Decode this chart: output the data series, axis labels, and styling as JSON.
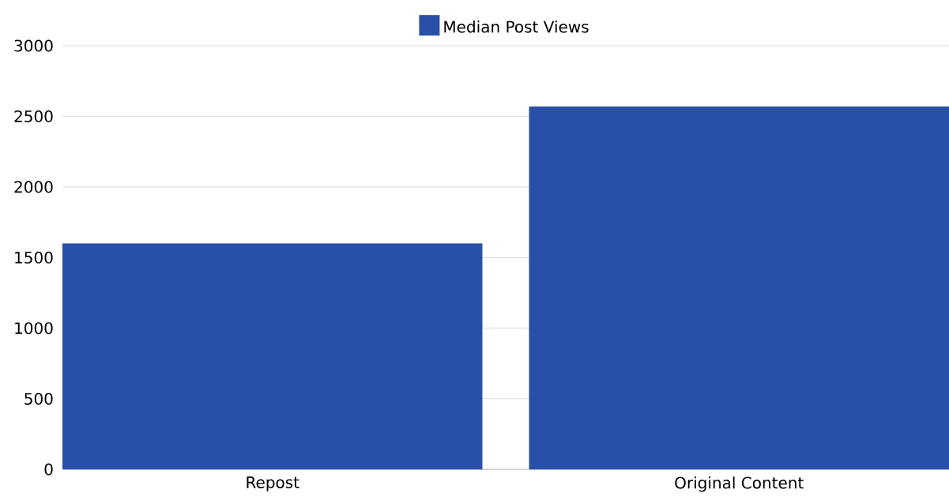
{
  "chart_data": {
    "type": "bar",
    "categories": [
      "Repost",
      "Original Content"
    ],
    "series": [
      {
        "name": "Median Post Views",
        "color": "#2850a8",
        "values": [
          1600,
          2570
        ]
      }
    ],
    "ylim": [
      0,
      3000
    ],
    "yticks": [
      0,
      500,
      1000,
      1500,
      2000,
      2500,
      3000
    ],
    "grid": "y",
    "legend": "top"
  }
}
